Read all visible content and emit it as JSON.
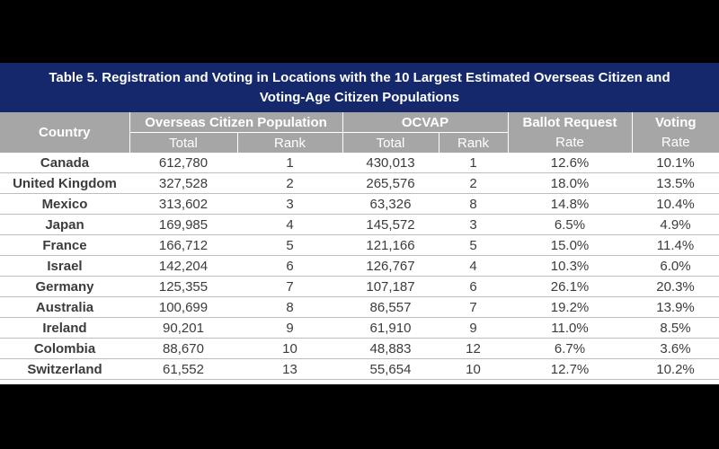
{
  "title": {
    "line1": "Table 5. Registration and Voting in Locations with the 10 Largest Estimated Overseas Citizen and",
    "line2": "Voting-Age Citizen Populations"
  },
  "headers": {
    "country": "Country",
    "ocp": "Overseas Citizen Population",
    "ocvap": "OCVAP",
    "ballot_l1": "Ballot Request",
    "ballot_l2": "Rate",
    "voting_l1": "Voting",
    "voting_l2": "Rate",
    "total": "Total",
    "rank": "Rank"
  },
  "rows": [
    {
      "country": "Canada",
      "ocp_total": "612,780",
      "ocp_rank": "1",
      "ocvap_total": "430,013",
      "ocvap_rank": "1",
      "ballot_rate": "12.6%",
      "voting_rate": "10.1%"
    },
    {
      "country": "United Kingdom",
      "ocp_total": "327,528",
      "ocp_rank": "2",
      "ocvap_total": "265,576",
      "ocvap_rank": "2",
      "ballot_rate": "18.0%",
      "voting_rate": "13.5%"
    },
    {
      "country": "Mexico",
      "ocp_total": "313,602",
      "ocp_rank": "3",
      "ocvap_total": "63,326",
      "ocvap_rank": "8",
      "ballot_rate": "14.8%",
      "voting_rate": "10.4%"
    },
    {
      "country": "Japan",
      "ocp_total": "169,985",
      "ocp_rank": "4",
      "ocvap_total": "145,572",
      "ocvap_rank": "3",
      "ballot_rate": "6.5%",
      "voting_rate": "4.9%"
    },
    {
      "country": "France",
      "ocp_total": "166,712",
      "ocp_rank": "5",
      "ocvap_total": "121,166",
      "ocvap_rank": "5",
      "ballot_rate": "15.0%",
      "voting_rate": "11.4%"
    },
    {
      "country": "Israel",
      "ocp_total": "142,204",
      "ocp_rank": "6",
      "ocvap_total": "126,767",
      "ocvap_rank": "4",
      "ballot_rate": "10.3%",
      "voting_rate": "6.0%"
    },
    {
      "country": "Germany",
      "ocp_total": "125,355",
      "ocp_rank": "7",
      "ocvap_total": "107,187",
      "ocvap_rank": "6",
      "ballot_rate": "26.1%",
      "voting_rate": "20.3%"
    },
    {
      "country": "Australia",
      "ocp_total": "100,699",
      "ocp_rank": "8",
      "ocvap_total": "86,557",
      "ocvap_rank": "7",
      "ballot_rate": "19.2%",
      "voting_rate": "13.9%"
    },
    {
      "country": "Ireland",
      "ocp_total": "90,201",
      "ocp_rank": "9",
      "ocvap_total": "61,910",
      "ocvap_rank": "9",
      "ballot_rate": "11.0%",
      "voting_rate": "8.5%"
    },
    {
      "country": "Colombia",
      "ocp_total": "88,670",
      "ocp_rank": "10",
      "ocvap_total": "48,883",
      "ocvap_rank": "12",
      "ballot_rate": "6.7%",
      "voting_rate": "3.6%"
    },
    {
      "country": "Switzerland",
      "ocp_total": "61,552",
      "ocp_rank": "13",
      "ocvap_total": "55,654",
      "ocvap_rank": "10",
      "ballot_rate": "12.7%",
      "voting_rate": "10.2%"
    }
  ]
}
